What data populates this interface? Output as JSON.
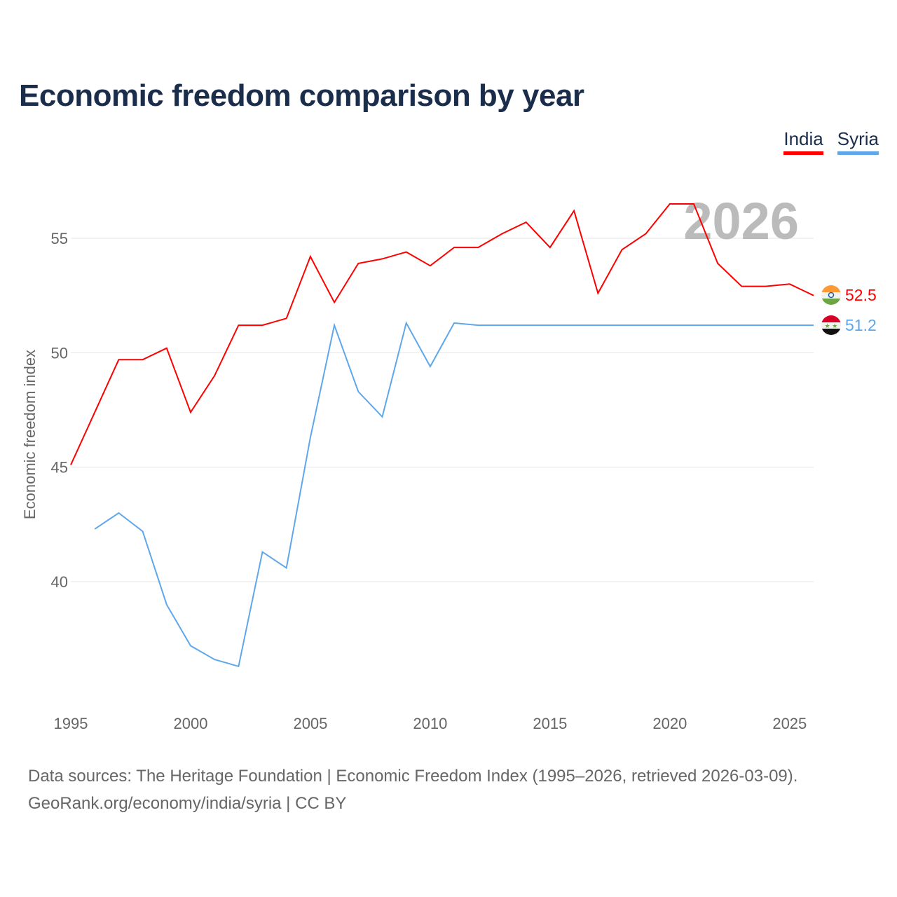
{
  "title": "Economic freedom comparison by year",
  "legend": [
    {
      "label": "India",
      "color": "#ff0000"
    },
    {
      "label": "Syria",
      "color": "#5ea7ea"
    }
  ],
  "year_watermark": "2026",
  "source": {
    "line1": "Data sources: The Heritage Foundation | Economic Freedom Index (1995–2026, retrieved 2026-03-09).",
    "line2": "GeoRank.org/economy/india/syria | CC BY"
  },
  "chart_data": {
    "type": "line",
    "title": "Economic freedom comparison by year",
    "xlabel": "",
    "ylabel": "Economic freedom index",
    "xlim": [
      1995,
      2026
    ],
    "ylim": [
      35,
      57
    ],
    "xticks": [
      1995,
      2000,
      2005,
      2010,
      2015,
      2020,
      2025
    ],
    "yticks": [
      40,
      45,
      50,
      55
    ],
    "grid": true,
    "legend_position": "top-right",
    "series": [
      {
        "name": "India",
        "color": "#ff0000",
        "end_label": "52.5",
        "flag": "india-flag",
        "x": [
          1995,
          1996,
          1997,
          1998,
          1999,
          2000,
          2001,
          2002,
          2003,
          2004,
          2005,
          2006,
          2007,
          2008,
          2009,
          2010,
          2011,
          2012,
          2013,
          2014,
          2015,
          2016,
          2017,
          2018,
          2019,
          2020,
          2021,
          2022,
          2023,
          2024,
          2025,
          2026
        ],
        "y": [
          45.1,
          47.4,
          49.7,
          49.7,
          50.2,
          47.4,
          49.0,
          51.2,
          51.2,
          51.5,
          54.2,
          52.2,
          53.9,
          54.1,
          54.4,
          53.8,
          54.6,
          54.6,
          55.2,
          55.7,
          54.6,
          56.2,
          52.6,
          54.5,
          55.2,
          56.5,
          56.5,
          53.9,
          52.9,
          52.9,
          53.0,
          52.5
        ]
      },
      {
        "name": "Syria",
        "color": "#5ea7ea",
        "end_label": "51.2",
        "flag": "syria-flag",
        "x": [
          1996,
          1997,
          1998,
          1999,
          2000,
          2001,
          2002,
          2003,
          2004,
          2005,
          2006,
          2007,
          2008,
          2009,
          2010,
          2011,
          2012,
          2013,
          2014,
          2015,
          2016,
          2017,
          2018,
          2019,
          2020,
          2021,
          2022,
          2023,
          2024,
          2025,
          2026
        ],
        "y": [
          42.3,
          43.0,
          42.2,
          39.0,
          37.2,
          36.6,
          36.3,
          41.3,
          40.6,
          46.3,
          51.2,
          48.3,
          47.2,
          51.3,
          49.4,
          51.3,
          51.2,
          51.2,
          51.2,
          51.2,
          51.2,
          51.2,
          51.2,
          51.2,
          51.2,
          51.2,
          51.2,
          51.2,
          51.2,
          51.2,
          51.2
        ]
      }
    ]
  }
}
